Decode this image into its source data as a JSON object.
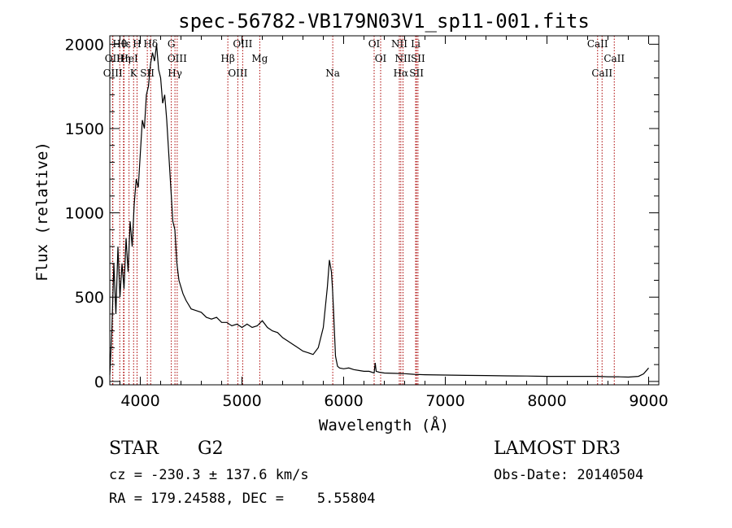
{
  "chart_data": {
    "type": "line",
    "title": "spec-56782-VB179N03V1_sp11-001.fits",
    "xlabel": "Wavelength (Å)",
    "ylabel": "Flux (relative)",
    "xlim": [
      3700,
      9100
    ],
    "ylim": [
      -20,
      2050
    ],
    "xticks": [
      4000,
      5000,
      6000,
      7000,
      8000,
      9000
    ],
    "xtick_labels": [
      "4000",
      "5000",
      "6000",
      "7000",
      "8000",
      "9000"
    ],
    "yticks": [
      0,
      500,
      1000,
      1500,
      2000
    ],
    "ytick_labels": [
      "0",
      "500",
      "1000",
      "1500",
      "2000"
    ],
    "grid": false,
    "series": [
      {
        "x": [
          3700,
          3720,
          3740,
          3760,
          3780,
          3800,
          3820,
          3840,
          3860,
          3880,
          3900,
          3920,
          3940,
          3960,
          3980,
          4000,
          4020,
          4040,
          4060,
          4080,
          4100,
          4120,
          4140,
          4160,
          4180,
          4200,
          4220,
          4240,
          4260,
          4280,
          4300,
          4320,
          4340,
          4360,
          4380,
          4400,
          4420,
          4450,
          4500,
          4550,
          4600,
          4650,
          4700,
          4750,
          4800,
          4850,
          4900,
          4950,
          5000,
          5050,
          5100,
          5150,
          5200,
          5250,
          5300,
          5350,
          5400,
          5450,
          5500,
          5550,
          5600,
          5650,
          5700,
          5750,
          5800,
          5840,
          5860,
          5880,
          5890,
          5900,
          5920,
          5940,
          5960,
          6000,
          6050,
          6100,
          6150,
          6200,
          6250,
          6300,
          6310,
          6320,
          6350,
          6400,
          6500,
          6600,
          6700,
          6800,
          7000,
          7200,
          7400,
          7600,
          7800,
          8000,
          8200,
          8400,
          8500,
          8600,
          8700,
          8800,
          8900,
          8950,
          9000
        ],
        "y": [
          40,
          300,
          700,
          400,
          800,
          500,
          700,
          550,
          850,
          650,
          950,
          800,
          1050,
          1200,
          1150,
          1350,
          1550,
          1500,
          1700,
          1750,
          1880,
          1950,
          1900,
          2000,
          1850,
          1800,
          1650,
          1700,
          1550,
          1350,
          1150,
          950,
          900,
          700,
          600,
          560,
          520,
          480,
          430,
          420,
          410,
          380,
          370,
          380,
          350,
          350,
          330,
          340,
          320,
          340,
          320,
          330,
          360,
          320,
          300,
          290,
          260,
          240,
          220,
          200,
          180,
          170,
          160,
          200,
          320,
          560,
          720,
          650,
          550,
          430,
          150,
          90,
          80,
          75,
          80,
          70,
          65,
          60,
          60,
          50,
          110,
          60,
          55,
          50,
          48,
          46,
          42,
          40,
          38,
          36,
          35,
          33,
          32,
          30,
          30,
          30,
          30,
          28,
          28,
          26,
          30,
          45,
          80
        ]
      }
    ],
    "line_marks": [
      {
        "label": "Hθ",
        "x": 3798
      },
      {
        "label": "OII",
        "x": 3727
      },
      {
        "label": "OIII",
        "x": 3730
      },
      {
        "label": "Hε",
        "x": 3840
      },
      {
        "label": "Hη",
        "x": 3835
      },
      {
        "label": "K",
        "x": 3934
      },
      {
        "label": "H",
        "x": 3968
      },
      {
        "label": "HeI",
        "x": 3889
      },
      {
        "label": "SII",
        "x": 4069
      },
      {
        "label": "Hδ",
        "x": 4102
      },
      {
        "label": "OIII",
        "x": 4363
      },
      {
        "label": "Hγ",
        "x": 4341
      },
      {
        "label": "G",
        "x": 4305
      },
      {
        "label": "Hβ",
        "x": 4861
      },
      {
        "label": "OIII",
        "x": 4959
      },
      {
        "label": "OIII",
        "x": 5007
      },
      {
        "label": "Mg",
        "x": 5175
      },
      {
        "label": "Na",
        "x": 5893
      },
      {
        "label": "OI",
        "x": 6300
      },
      {
        "label": "OI",
        "x": 6364
      },
      {
        "label": "Hα",
        "x": 6563
      },
      {
        "label": "NII",
        "x": 6548
      },
      {
        "label": "NII",
        "x": 6584
      },
      {
        "label": "SII",
        "x": 6717
      },
      {
        "label": "Li",
        "x": 6708
      },
      {
        "label": "SII",
        "x": 6731
      },
      {
        "label": "CaII",
        "x": 8542
      },
      {
        "label": "CaII",
        "x": 8498
      },
      {
        "label": "CaII",
        "x": 8662
      }
    ],
    "line_color": "#000000",
    "mark_color": "#aa0000"
  },
  "info": {
    "class_label": "STAR",
    "subclass": "G2",
    "survey": "LAMOST DR3",
    "cz": "cz = -230.3 ± 137.6 km/s",
    "obs_date": "Obs-Date: 20140504",
    "coords": "RA = 179.24588, DEC =    5.55804"
  }
}
